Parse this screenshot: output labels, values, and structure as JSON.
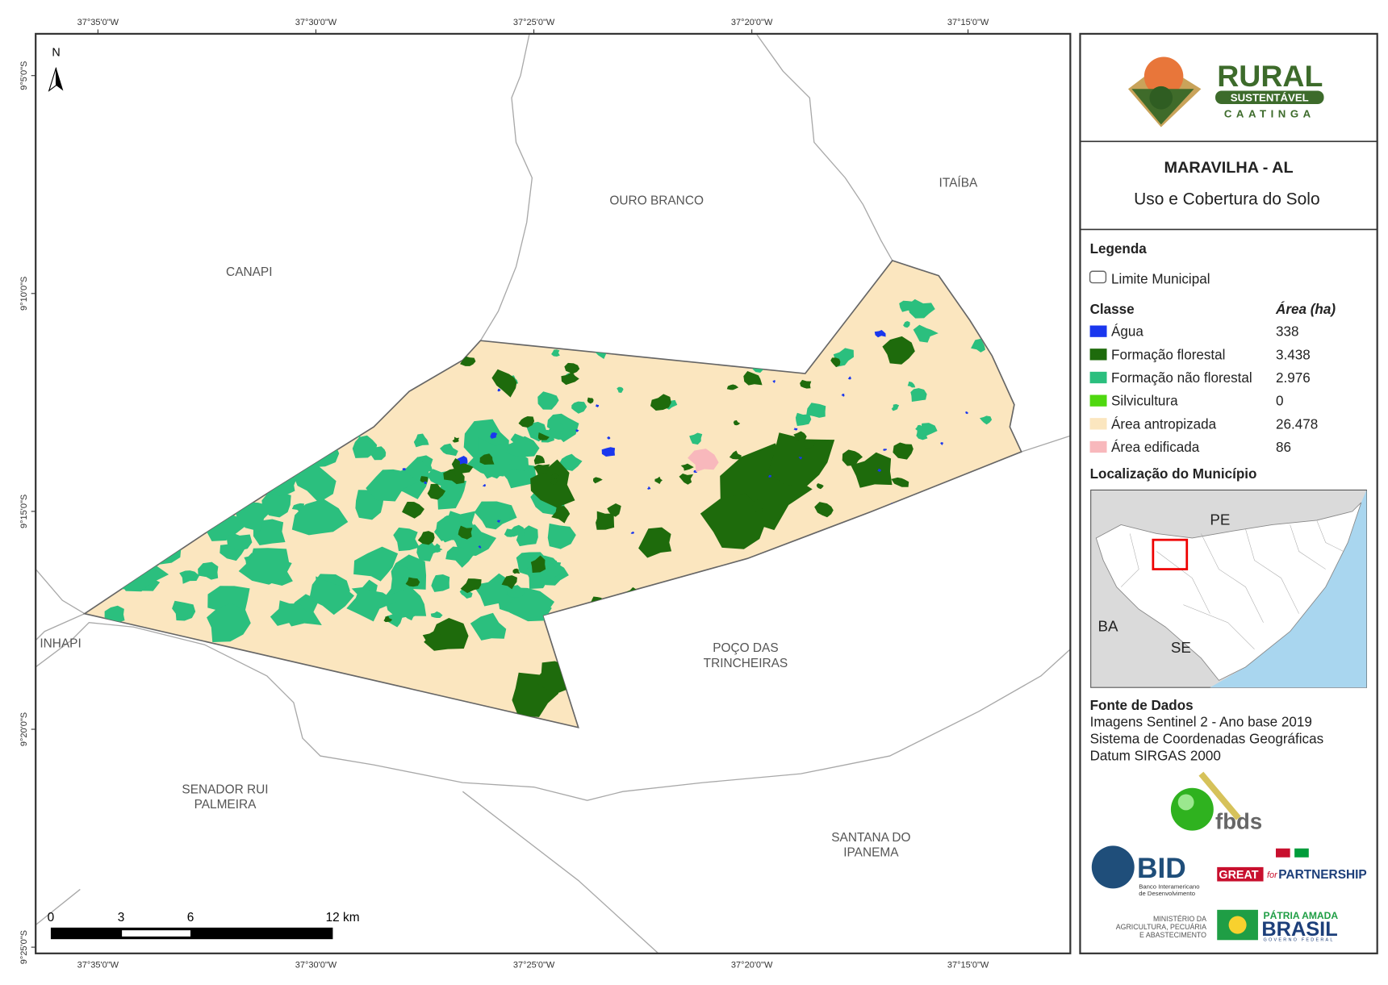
{
  "map": {
    "title": "MARAVILHA - AL",
    "subtitle": "Uso e Cobertura do Solo",
    "north": "N",
    "longitude_labels": [
      "37°35'0\"W",
      "37°30'0\"W",
      "37°25'0\"W",
      "37°20'0\"W",
      "37°15'0\"W"
    ],
    "latitude_labels": [
      "9°5'0\"S",
      "9°10'0\"S",
      "9°15'0\"S",
      "9°20'0\"S",
      "9°25'0\"S"
    ],
    "places": [
      {
        "lines": [
          "CANAPI"
        ]
      },
      {
        "lines": [
          "OURO BRANCO"
        ]
      },
      {
        "lines": [
          "ITAÍBA"
        ]
      },
      {
        "lines": [
          "INHAPI"
        ]
      },
      {
        "lines": [
          "POÇO DAS",
          "TRINCHEIRAS"
        ]
      },
      {
        "lines": [
          "SENADOR RUI",
          "PALMEIRA"
        ]
      },
      {
        "lines": [
          "SANTANA DO",
          "IPANEMA"
        ]
      }
    ],
    "scale_bar": [
      "0",
      "3",
      "6",
      "12 km"
    ]
  },
  "legend": {
    "title": "Legenda",
    "boundary": "Limite Municipal",
    "class_header": "Classe",
    "area_header": "Área (ha)",
    "classes": [
      {
        "name": "Água",
        "area": "338",
        "color": "#1a37ee"
      },
      {
        "name": "Formação florestal",
        "area": "3.438",
        "color": "#1e6b0c"
      },
      {
        "name": "Formação não florestal",
        "area": "2.976",
        "color": "#2bbf7e"
      },
      {
        "name": "Silvicultura",
        "area": "0",
        "color": "#4fd80f"
      },
      {
        "name": "Área antropizada",
        "area": "26.478",
        "color": "#fbe6bf"
      },
      {
        "name": "Área edificada",
        "area": "86",
        "color": "#f8b8bc"
      }
    ]
  },
  "location": {
    "title": "Localização do Município",
    "labels": [
      "PE",
      "BA",
      "SE"
    ]
  },
  "sources": {
    "title": "Fonte de Dados",
    "lines": [
      "Imagens Sentinel 2 - Ano base 2019",
      "Sistema de Coordenadas Geográficas",
      "Datum SIRGAS 2000"
    ]
  },
  "logos": {
    "rural": "RURAL",
    "sustentavel": "SUSTENTÁVEL",
    "caatinga": "CAATINGA",
    "fbds": "fbds",
    "bid": "BID",
    "bid_sub": [
      "Banco Interamericano",
      "de Desenvolvimento"
    ],
    "great": "GREAT",
    "for": "for",
    "partnership": "PARTNERSHIP",
    "ministry": [
      "MINISTÉRIO DA",
      "AGRICULTURA, PECUÁRIA",
      "E ABASTECIMENTO"
    ],
    "patria": "PÁTRIA AMADA",
    "brasil": "BRASIL",
    "gov": "GOVERNO FEDERAL"
  }
}
